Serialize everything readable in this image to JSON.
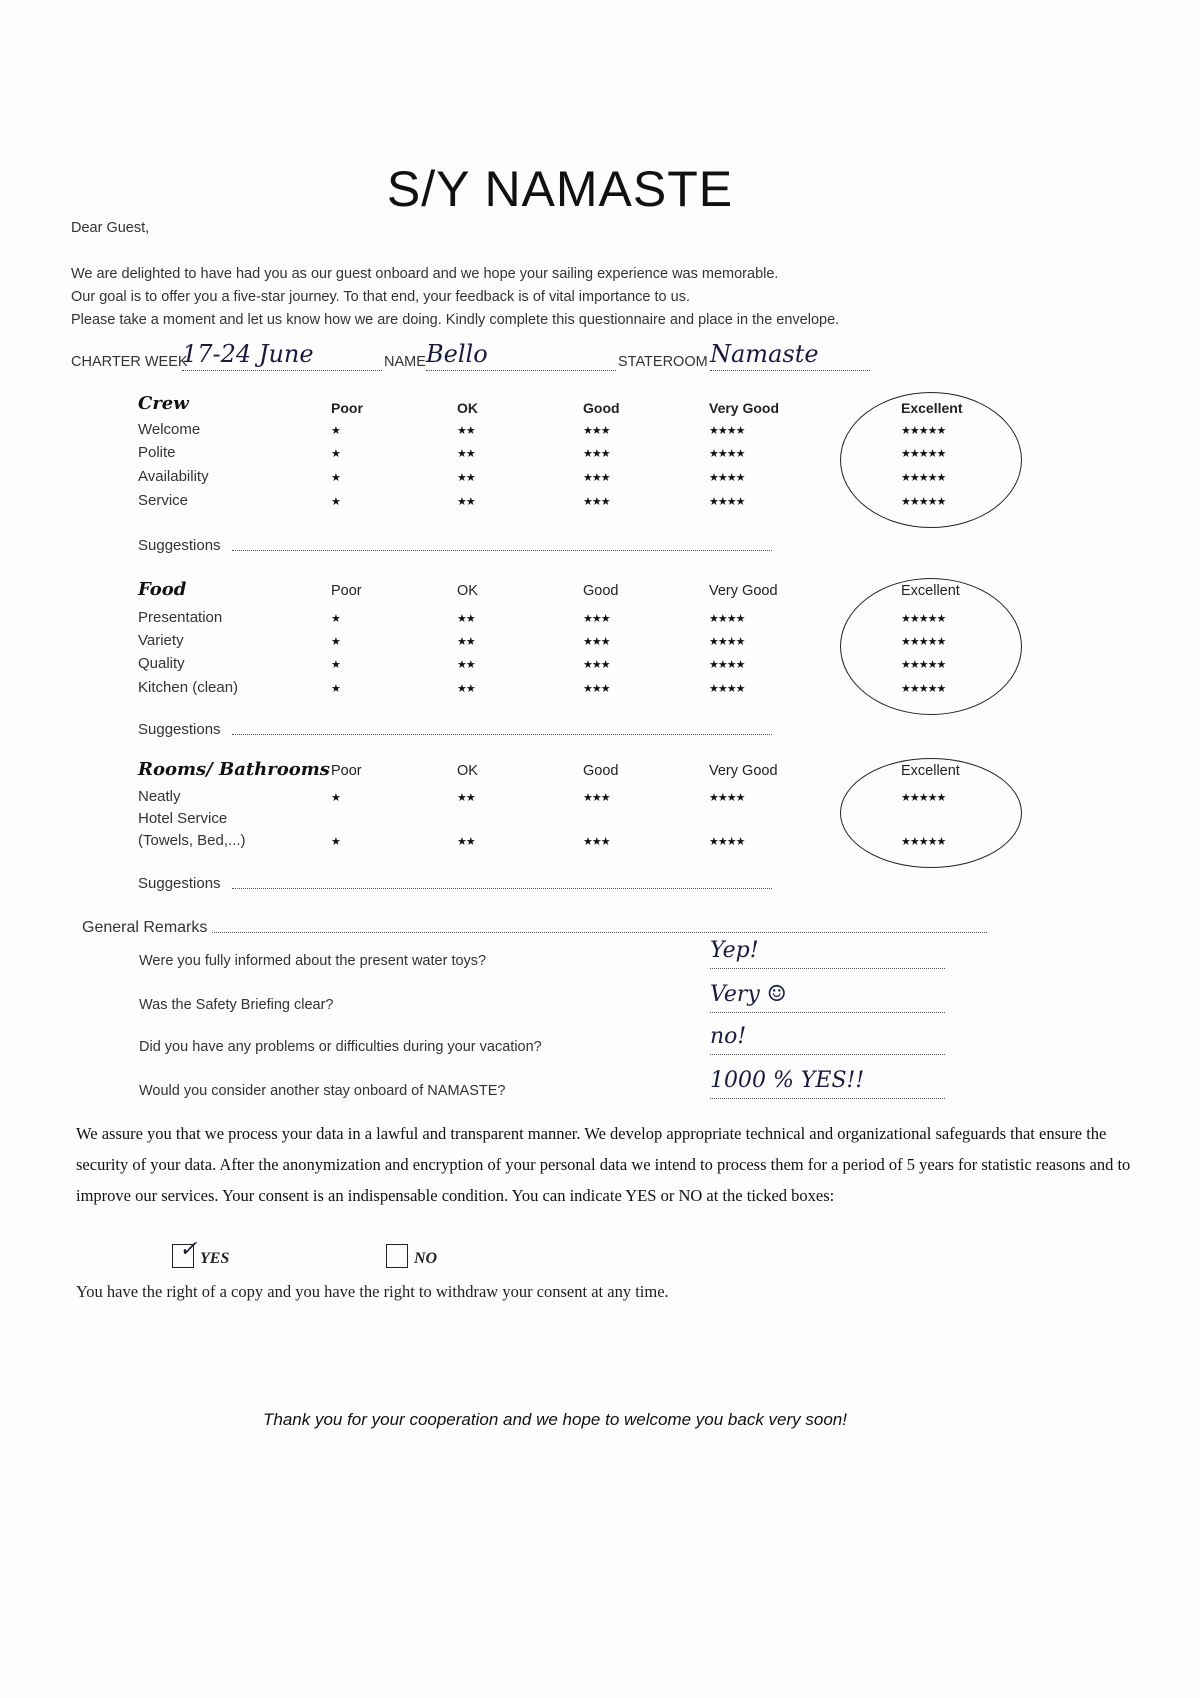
{
  "title": "S/Y NAMASTE",
  "greeting": "Dear Guest,",
  "intro": [
    "We are delighted to have had you as our guest onboard and we hope your sailing experience was memorable.",
    "Our goal is to offer you a five-star journey. To that end, your feedback is of vital importance to us.",
    "Please take a moment and let us know how we are doing. Kindly complete this questionnaire and place in the envelope."
  ],
  "fields": {
    "charter_week_label": "CHARTER WEEK",
    "charter_week_value": "17-24 June",
    "name_label": "NAME",
    "name_value": "Bello",
    "stateroom_label": "STATEROOM",
    "stateroom_value": "Namaste"
  },
  "rating_scale": [
    {
      "label": "Poor",
      "stars": "★"
    },
    {
      "label": "OK",
      "stars": "★★"
    },
    {
      "label": "Good",
      "stars": "★★★"
    },
    {
      "label": "Very Good",
      "stars": "★★★★"
    },
    {
      "label": "Excellent",
      "stars": "★★★★★"
    }
  ],
  "sections": [
    {
      "title": "Crew",
      "items": [
        "Welcome",
        "Polite",
        "Availability",
        "Service"
      ],
      "selected": "Excellent",
      "suggestions_label": "Suggestions"
    },
    {
      "title": "Food",
      "items": [
        "Presentation",
        "Variety",
        "Quality",
        "Kitchen (clean)"
      ],
      "selected": "Excellent",
      "suggestions_label": "Suggestions"
    },
    {
      "title": "Rooms/ Bathrooms",
      "items": [
        "Neatly",
        "Hotel Service",
        "(Towels, Bed,...)"
      ],
      "selected": "Excellent",
      "suggestions_label": "Suggestions"
    }
  ],
  "general_remarks_label": "General Remarks",
  "questions": [
    {
      "q": "Were you fully informed about the present water toys?",
      "a": "Yep!"
    },
    {
      "q": "Was the Safety Briefing clear?",
      "a": "Very ☺"
    },
    {
      "q": "Did you have any problems or difficulties during your vacation?",
      "a": "no!"
    },
    {
      "q": "Would you consider another stay onboard of NAMASTE?",
      "a": "1000 % YES!!"
    }
  ],
  "consent_text": "We assure you that we process your data in a lawful and transparent manner. We develop appropriate technical and organizational safeguards that ensure the security of your data. After the anonymization and encryption of your personal data we intend to process them for a period of 5 years for statistic reasons and to improve our services. Your consent is an indispensable condition. You can indicate YES or NO at the ticked boxes:",
  "consent_yes": "YES",
  "consent_no": "NO",
  "consent_checked": "YES",
  "rights_text": "You have the right of a copy and you have the right to withdraw your consent at any time.",
  "thanks": "Thank you for your cooperation and we hope to welcome you back very soon!"
}
